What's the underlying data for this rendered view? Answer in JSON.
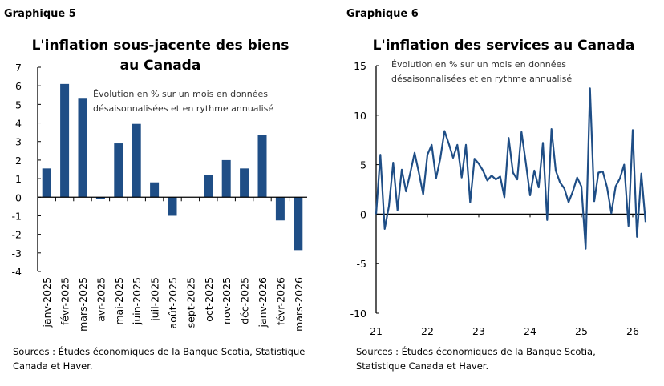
{
  "colors": {
    "series": "#1f4e86",
    "axis": "#000000"
  },
  "chart_data": [
    {
      "type": "bar",
      "header": "Graphique 5",
      "title": [
        "L'inflation sous-jacente des biens",
        "au Canada"
      ],
      "subtitle": [
        "Évolution en % sur un mois en données",
        "désaisonnalisées et en rythme annualisé"
      ],
      "categories": [
        "janv-2025",
        "févr-2025",
        "mars-2025",
        "avr-2025",
        "mai-2025",
        "juin-2025",
        "juil-2025",
        "août-2025",
        "sept-2025",
        "oct-2025",
        "nov-2025",
        "déc-2025",
        "janv-2026",
        "févr-2026",
        "mars-2026"
      ],
      "values": [
        1.55,
        6.1,
        5.35,
        -0.1,
        2.9,
        3.95,
        0.8,
        -1.0,
        0,
        1.2,
        2.0,
        1.55,
        3.35,
        -1.25,
        -2.85
      ],
      "ylim": [
        -4,
        7
      ],
      "yticks": [
        "-4",
        "-3",
        "-2",
        "-1",
        "0",
        "1",
        "2",
        "3",
        "4",
        "5",
        "6",
        "7"
      ],
      "grid": false,
      "source": [
        "Sources : Études économiques de la Banque Scotia, Statistique",
        "Canada et Haver."
      ]
    },
    {
      "type": "line",
      "header": "Graphique 6",
      "title": [
        "L'inflation des services au Canada"
      ],
      "subtitle": [
        "Évolution en % sur un mois en données",
        "désaisonnalisées et en rythme annualisé"
      ],
      "x": [
        "2021-01",
        "2021-02",
        "2021-03",
        "2021-04",
        "2021-05",
        "2021-06",
        "2021-07",
        "2021-08",
        "2021-09",
        "2021-10",
        "2021-11",
        "2021-12",
        "2022-01",
        "2022-02",
        "2022-03",
        "2022-04",
        "2022-05",
        "2022-06",
        "2022-07",
        "2022-08",
        "2022-09",
        "2022-10",
        "2022-11",
        "2022-12",
        "2023-01",
        "2023-02",
        "2023-03",
        "2023-04",
        "2023-05",
        "2023-06",
        "2023-07",
        "2023-08",
        "2023-09",
        "2023-10",
        "2023-11",
        "2023-12",
        "2024-01",
        "2024-02",
        "2024-03",
        "2024-04",
        "2024-05",
        "2024-06",
        "2024-07",
        "2024-08",
        "2024-09",
        "2024-10",
        "2024-11",
        "2024-12",
        "2025-01",
        "2025-02",
        "2025-03",
        "2025-04",
        "2025-05",
        "2025-06",
        "2025-07",
        "2025-08",
        "2025-09",
        "2025-10",
        "2025-11",
        "2025-12",
        "2026-01",
        "2026-02",
        "2026-03",
        "2026-04"
      ],
      "values": [
        0,
        6.0,
        -1.5,
        0.8,
        5.2,
        0.4,
        4.5,
        2.3,
        4.2,
        6.2,
        4.2,
        2.0,
        6.0,
        7.0,
        3.6,
        5.6,
        8.4,
        7.1,
        5.7,
        7.0,
        3.7,
        7.0,
        1.2,
        5.6,
        5.1,
        4.4,
        3.4,
        3.9,
        3.5,
        3.8,
        1.7,
        7.7,
        4.2,
        3.5,
        8.3,
        5.2,
        1.9,
        4.4,
        2.7,
        7.2,
        -0.6,
        8.6,
        4.4,
        3.2,
        2.6,
        1.2,
        2.3,
        3.7,
        2.8,
        -3.5,
        12.7,
        1.3,
        4.2,
        4.3,
        2.7,
        0.1,
        2.8,
        3.6,
        5.0,
        -1.2,
        8.5,
        -2.3,
        4.1,
        -0.8
      ],
      "ylim": [
        -10,
        15
      ],
      "yticks": [
        "-10",
        "-5",
        "0",
        "5",
        "10",
        "15"
      ],
      "xticks": [
        "21",
        "22",
        "23",
        "24",
        "25",
        "26"
      ],
      "grid": false,
      "source": [
        "Sources : Études économiques de la Banque Scotia,",
        "Statistique Canada et Haver."
      ]
    }
  ]
}
